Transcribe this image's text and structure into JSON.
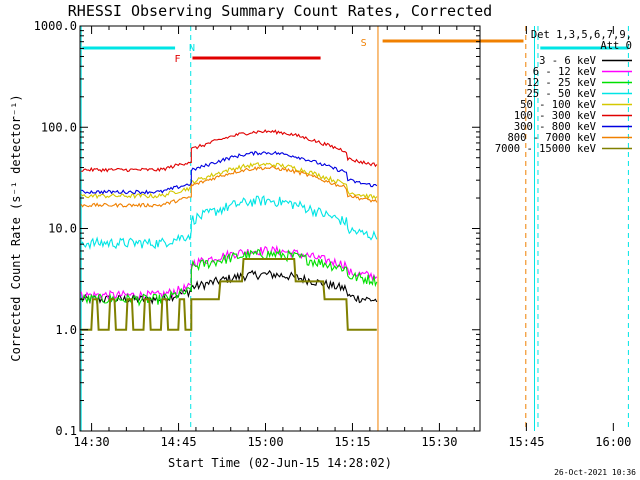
{
  "chart_data": {
    "type": "line",
    "title": "RHESSI Observing Summary Count Rates, Corrected",
    "xlabel": "Start Time (02-Jun-15 14:28:02)",
    "ylabel": "Corrected Count Rate (s⁻¹ detector⁻¹)",
    "yscale": "log",
    "ylim": [
      0.1,
      1000.0
    ],
    "xlim_minutes": [
      -2,
      67
    ],
    "y_ticks": [
      "0.1",
      "1.0",
      "10.0",
      "100.0",
      "1000.0"
    ],
    "x_ticks": [
      {
        "label": "14:30",
        "t": 0
      },
      {
        "label": "14:45",
        "t": 15
      },
      {
        "label": "15:00",
        "t": 30
      },
      {
        "label": "15:15",
        "t": 45
      },
      {
        "label": "15:30",
        "t": 60
      },
      {
        "label": "15:45",
        "t": 75
      },
      {
        "label": "16:00",
        "t": 90
      }
    ],
    "legend_title": [
      "Det 1,3,5,6,7,9,",
      "Att 0"
    ],
    "legend_position": "top-right",
    "series": [
      {
        "name": "3 - 6 keV",
        "color": "#000000"
      },
      {
        "name": "6 - 12 keV",
        "color": "#ff00ff"
      },
      {
        "name": "12 - 25 keV",
        "color": "#00e000"
      },
      {
        "name": "25 - 50 keV",
        "color": "#00e5e5"
      },
      {
        "name": "50 - 100 keV",
        "color": "#d4c800"
      },
      {
        "name": "100 - 300 keV",
        "color": "#e00000"
      },
      {
        "name": "300 - 800 keV",
        "color": "#0000e0"
      },
      {
        "name": "800 - 7000 keV",
        "color": "#f08000"
      },
      {
        "name": "7000 - 15000 keV",
        "color": "#808000"
      }
    ],
    "flags": [
      {
        "label": "N",
        "color": "#00e5e5"
      },
      {
        "label": "F",
        "color": "#e00000"
      },
      {
        "label": "S",
        "color": "#f08000"
      }
    ]
  },
  "footer": {
    "date": "26-Oct-2021 10:36"
  }
}
